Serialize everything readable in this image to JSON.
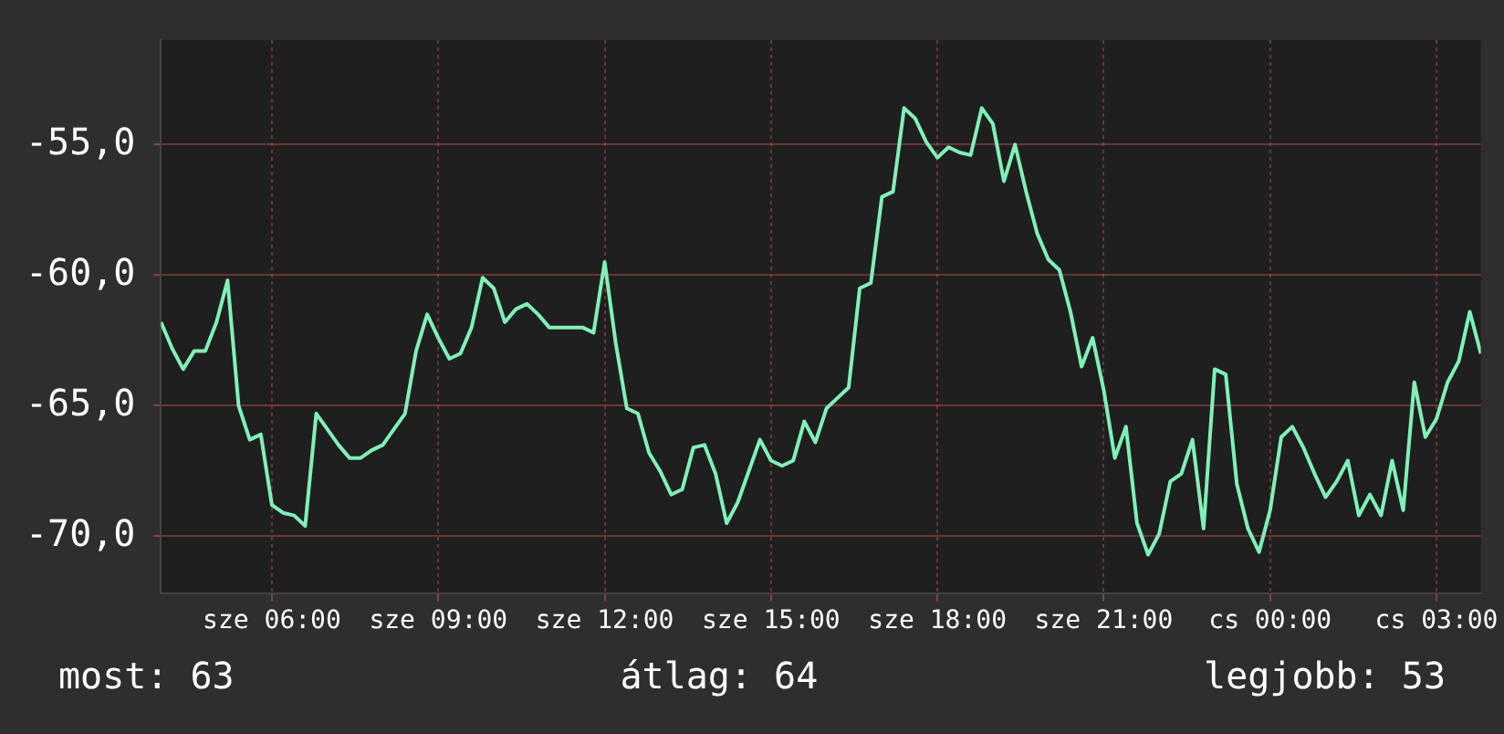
{
  "chart_data": {
    "type": "line",
    "ylim": [
      -72.2,
      -51
    ],
    "categories": [
      null,
      null,
      null,
      null,
      null,
      null,
      null,
      null,
      null,
      null,
      "sze 06:00",
      null,
      null,
      null,
      null,
      null,
      null,
      null,
      null,
      null,
      null,
      null,
      null,
      null,
      null,
      "sze 09:00",
      null,
      null,
      null,
      null,
      null,
      null,
      null,
      null,
      null,
      null,
      null,
      null,
      null,
      null,
      "sze 12:00",
      null,
      null,
      null,
      null,
      null,
      null,
      null,
      null,
      null,
      null,
      null,
      null,
      null,
      null,
      "sze 15:00",
      null,
      null,
      null,
      null,
      null,
      null,
      null,
      null,
      null,
      null,
      null,
      null,
      null,
      null,
      "sze 18:00",
      null,
      null,
      null,
      null,
      null,
      null,
      null,
      null,
      null,
      null,
      null,
      null,
      null,
      null,
      "sze 21:00",
      null,
      null,
      null,
      null,
      null,
      null,
      null,
      null,
      null,
      null,
      null,
      null,
      null,
      null,
      "cs 00:00",
      null,
      null,
      null,
      null,
      null,
      null,
      null,
      null,
      null,
      null,
      null,
      null,
      null,
      null,
      "cs 03:00",
      null,
      null,
      null,
      null
    ],
    "yticks": [
      {
        "value": -70,
        "label": "-70,0"
      },
      {
        "value": -65,
        "label": "-65,0"
      },
      {
        "value": -60,
        "label": "-60,0"
      },
      {
        "value": -55,
        "label": "-55,0"
      }
    ],
    "grid": true,
    "legend": false,
    "marker": "none",
    "line_style": "solid",
    "annotations": [
      "most: 63",
      "átlag: 64",
      "legjobb: 53"
    ],
    "series": [
      {
        "color": "#80f0b8",
        "values": [
          -61.8,
          -62.8,
          -63.6,
          -62.9,
          -62.9,
          -61.8,
          -60.2,
          -65.0,
          -66.3,
          -66.1,
          -68.8,
          -69.1,
          -69.2,
          -69.6,
          -65.3,
          -65.9,
          -66.5,
          -67.0,
          -67.0,
          -66.7,
          -66.5,
          -65.9,
          -65.3,
          -62.9,
          -61.5,
          -62.4,
          -63.2,
          -63.0,
          -62.0,
          -60.1,
          -60.5,
          -61.8,
          -61.3,
          -61.1,
          -61.5,
          -62.0,
          -62.0,
          -62.0,
          -62.0,
          -62.2,
          -59.5,
          -62.6,
          -65.1,
          -65.3,
          -66.8,
          -67.5,
          -68.4,
          -68.2,
          -66.6,
          -66.5,
          -67.6,
          -69.5,
          -68.7,
          -67.5,
          -66.3,
          -67.1,
          -67.3,
          -67.1,
          -65.6,
          -66.4,
          -65.1,
          -64.7,
          -64.3,
          -60.5,
          -60.3,
          -57.0,
          -56.8,
          -53.6,
          -54.0,
          -54.9,
          -55.5,
          -55.1,
          -55.3,
          -55.4,
          -53.6,
          -54.2,
          -56.4,
          -55.0,
          -56.8,
          -58.4,
          -59.4,
          -59.8,
          -61.4,
          -63.5,
          -62.4,
          -64.4,
          -67.0,
          -65.8,
          -69.5,
          -70.7,
          -69.9,
          -67.9,
          -67.6,
          -66.3,
          -69.7,
          -63.6,
          -63.8,
          -68.0,
          -69.7,
          -70.6,
          -69.0,
          -66.2,
          -65.8,
          -66.6,
          -67.6,
          -68.5,
          -67.9,
          -67.1,
          -69.2,
          -68.4,
          -69.2,
          -67.1,
          -69.0,
          -64.1,
          -66.2,
          -65.5,
          -64.1,
          -63.3,
          -61.4,
          -63.0
        ]
      }
    ]
  }
}
